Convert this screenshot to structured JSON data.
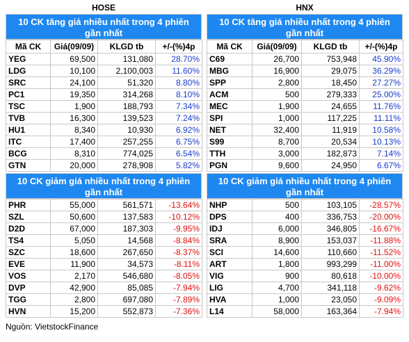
{
  "panels": [
    {
      "title": "HOSE",
      "columns": [
        "Mã CK",
        "Giá(09/09)",
        "KLGD tb",
        "+/-(%)4p"
      ],
      "gainers": {
        "title": "10 CK tăng giá nhiều nhất trong 4 phiên gần nhất",
        "rows": [
          [
            "YEG",
            "69,500",
            "131,080",
            "28.70%"
          ],
          [
            "LDG",
            "10,100",
            "2,100,003",
            "11.60%"
          ],
          [
            "SRC",
            "24,100",
            "51,320",
            "8.80%"
          ],
          [
            "PC1",
            "19,350",
            "314,268",
            "8.10%"
          ],
          [
            "TSC",
            "1,900",
            "188,793",
            "7.34%"
          ],
          [
            "TVB",
            "16,300",
            "139,523",
            "7.24%"
          ],
          [
            "HU1",
            "8,340",
            "10,930",
            "6.92%"
          ],
          [
            "ITC",
            "17,400",
            "257,255",
            "6.75%"
          ],
          [
            "BCG",
            "8,310",
            "774,025",
            "6.54%"
          ],
          [
            "GTN",
            "20,000",
            "278,908",
            "5.82%"
          ]
        ]
      },
      "losers": {
        "title": "10 CK giảm giá nhiều nhất trong 4 phiên gần nhất",
        "rows": [
          [
            "PHR",
            "55,000",
            "561,571",
            "-13.64%"
          ],
          [
            "SZL",
            "50,600",
            "137,583",
            "-10.12%"
          ],
          [
            "D2D",
            "67,000",
            "187,303",
            "-9.95%"
          ],
          [
            "TS4",
            "5,050",
            "14,568",
            "-8.84%"
          ],
          [
            "SZC",
            "18,600",
            "267,650",
            "-8.37%"
          ],
          [
            "EVE",
            "11,900",
            "34,573",
            "-8.11%"
          ],
          [
            "VOS",
            "2,170",
            "546,680",
            "-8.05%"
          ],
          [
            "DVP",
            "42,900",
            "85,085",
            "-7.94%"
          ],
          [
            "TGG",
            "2,800",
            "697,080",
            "-7.89%"
          ],
          [
            "HVN",
            "15,200",
            "552,873",
            "-7.36%"
          ]
        ]
      }
    },
    {
      "title": "HNX",
      "columns": [
        "Mã CK",
        "Giá(09/09)",
        "KLGD tb",
        "+/-(%)4p"
      ],
      "gainers": {
        "title": "10 CK tăng giá nhiều nhất trong 4 phiên gần nhất",
        "rows": [
          [
            "C69",
            "26,700",
            "753,948",
            "45.90%"
          ],
          [
            "MBG",
            "16,900",
            "29,075",
            "36.29%"
          ],
          [
            "SPP",
            "2,800",
            "18,450",
            "27.27%"
          ],
          [
            "ACM",
            "500",
            "279,333",
            "25.00%"
          ],
          [
            "MEC",
            "1,900",
            "24,655",
            "11.76%"
          ],
          [
            "SPI",
            "1,000",
            "117,225",
            "11.11%"
          ],
          [
            "NET",
            "32,400",
            "11,919",
            "10.58%"
          ],
          [
            "S99",
            "8,700",
            "20,534",
            "10.13%"
          ],
          [
            "TTH",
            "3,000",
            "182,873",
            "7.14%"
          ],
          [
            "PGN",
            "9,600",
            "24,950",
            "6.67%"
          ]
        ]
      },
      "losers": {
        "title": "10 CK giảm giá nhiều nhất trong 4 phiên gần nhất",
        "rows": [
          [
            "NHP",
            "500",
            "103,105",
            "-28.57%"
          ],
          [
            "DPS",
            "400",
            "336,753",
            "-20.00%"
          ],
          [
            "IDJ",
            "6,000",
            "346,805",
            "-16.67%"
          ],
          [
            "SRA",
            "8,900",
            "153,037",
            "-11.88%"
          ],
          [
            "SCI",
            "14,600",
            "110,660",
            "-11.52%"
          ],
          [
            "ART",
            "1,800",
            "993,299",
            "-11.00%"
          ],
          [
            "VIG",
            "900",
            "80,618",
            "-10.00%"
          ],
          [
            "LIG",
            "4,700",
            "341,118",
            "-9.62%"
          ],
          [
            "HVA",
            "1,000",
            "23,050",
            "-9.09%"
          ],
          [
            "L14",
            "58,000",
            "163,364",
            "-7.94%"
          ]
        ]
      }
    }
  ],
  "source": "Nguồn: VietstockFinance"
}
